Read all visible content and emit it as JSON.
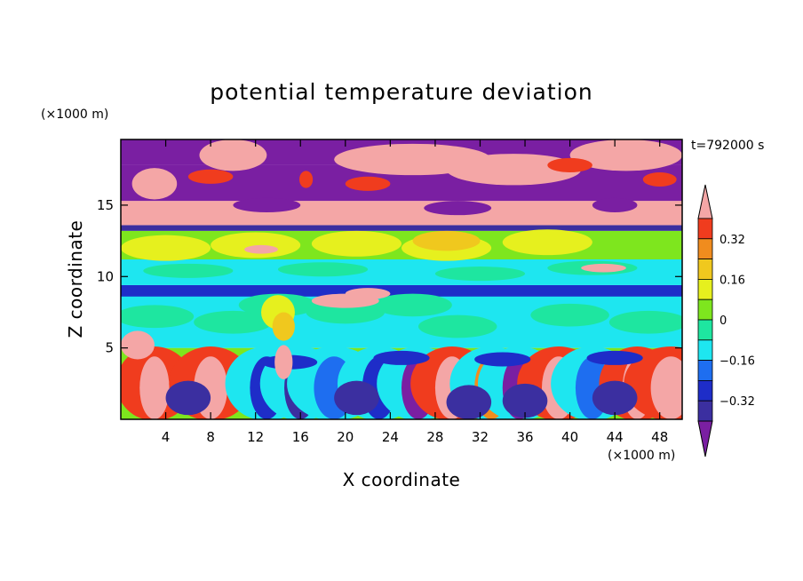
{
  "chart_data": {
    "type": "heatmap",
    "title": "potential temperature deviation",
    "xlabel": "X coordinate",
    "ylabel": "Z coordinate",
    "x_unit": "(×1000 m)",
    "y_unit": "(×1000 m)",
    "time_label": "t=792000 s",
    "xlim": [
      0,
      50
    ],
    "ylim": [
      0,
      19.6
    ],
    "x_ticks": [
      4,
      8,
      12,
      16,
      20,
      24,
      28,
      32,
      36,
      40,
      44,
      48
    ],
    "y_ticks": [
      5,
      10,
      15
    ],
    "colorbar": {
      "levels": [
        -0.4,
        -0.32,
        -0.24,
        -0.16,
        -0.08,
        0,
        0.08,
        0.16,
        0.24,
        0.32,
        0.4
      ],
      "labeled_levels": [
        0.32,
        0.16,
        0,
        -0.16,
        -0.32
      ],
      "labels": [
        "0.32",
        "0.16",
        "0",
        "−0.16",
        "−0.32"
      ],
      "colors": [
        "#7a1fa2",
        "#3b2fa0",
        "#1e2dc8",
        "#1e6ef0",
        "#1ee6f0",
        "#1ee6a0",
        "#7ee61e",
        "#e6f01e",
        "#f0c81e",
        "#f08c1e",
        "#f03c1e",
        "#f4a6a6"
      ],
      "extend": "both"
    },
    "layers": [
      {
        "z_range": [
          18.0,
          19.6
        ],
        "dominant": "mixed purple / pink / red"
      },
      {
        "z_range": [
          15.2,
          18.0
        ],
        "dominant": "purple with pink patches"
      },
      {
        "z_range": [
          13.2,
          15.2
        ],
        "dominant": "pink"
      },
      {
        "z_range": [
          11.0,
          13.2
        ],
        "dominant": "green / yellow-green"
      },
      {
        "z_range": [
          9.5,
          11.0
        ],
        "dominant": "cyan / green"
      },
      {
        "z_range": [
          8.6,
          9.5
        ],
        "dominant": "dark blue"
      },
      {
        "z_range": [
          5.0,
          8.6
        ],
        "dominant": "cyan / green"
      },
      {
        "z_range": [
          0,
          5.0
        ],
        "dominant": "mixed convective plumes"
      }
    ]
  }
}
